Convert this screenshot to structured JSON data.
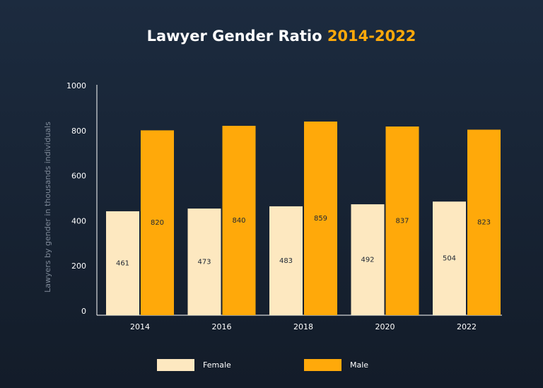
{
  "chart_data": {
    "type": "bar",
    "title": "Lawyer Gender Ratio",
    "title_highlight": "2014-2022",
    "y_label": "Lawyers by gender in thousands individuals",
    "categories": [
      "2014",
      "2016",
      "2018",
      "2020",
      "2022"
    ],
    "series": [
      {
        "name": "Female",
        "color": "#fde8c0",
        "values": [
          461,
          473,
          483,
          492,
          504
        ]
      },
      {
        "name": "Male",
        "color": "#ffa90a",
        "values": [
          820,
          840,
          859,
          837,
          823
        ]
      }
    ],
    "ylim": [
      0,
      1000
    ],
    "yticks": [
      0,
      200,
      400,
      600,
      800,
      1000
    ],
    "grid": false,
    "legend": "bottom"
  }
}
